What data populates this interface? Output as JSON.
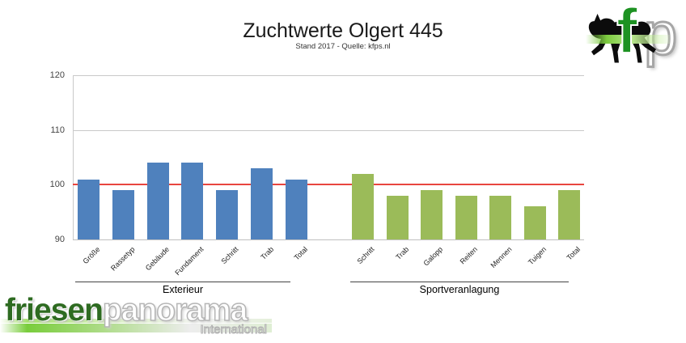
{
  "header": {
    "title": "Zuchtwerte Olgert 445",
    "subtitle": "Stand 2017 - Quelle: kfps.nl"
  },
  "chart_data": {
    "type": "bar",
    "title": "Zuchtwerte Olgert 445",
    "subtitle": "Stand 2017 - Quelle: kfps.nl",
    "ylim": [
      90,
      120
    ],
    "yticks": [
      90,
      100,
      110,
      120
    ],
    "grid": "horizontal",
    "reference_line": {
      "value": 100,
      "color": "#e8453f"
    },
    "groups": [
      {
        "label": "Exterieur",
        "bar_color": "#4f81bd",
        "categories": [
          "Größe",
          "Rassetyp",
          "Gebäude",
          "Fundament",
          "Schritt",
          "Trab",
          "Total"
        ],
        "values": [
          101,
          99,
          104,
          104,
          99,
          103,
          101
        ]
      },
      {
        "label": "Sportveranlagung",
        "bar_color": "#9bbb59",
        "categories": [
          "Schritt",
          "Trab",
          "Galopp",
          "Reiten",
          "Mennen",
          "Tuigen",
          "Total"
        ],
        "values": [
          102,
          98,
          99,
          98,
          98,
          96,
          99
        ]
      }
    ]
  },
  "colors": {
    "blue_bar": "#4f81bd",
    "green_bar": "#9bbb59",
    "reference_red": "#e8453f",
    "gridline_gray": "#c9c9c9",
    "logo_green": "#1d9222",
    "wordmark_green": "#2e6b21"
  },
  "logo_top_right": {
    "letter_f": "f",
    "letter_p": "p"
  },
  "footer_logo": {
    "word1": "friesen",
    "word2": "panorama",
    "tagline": "International"
  }
}
